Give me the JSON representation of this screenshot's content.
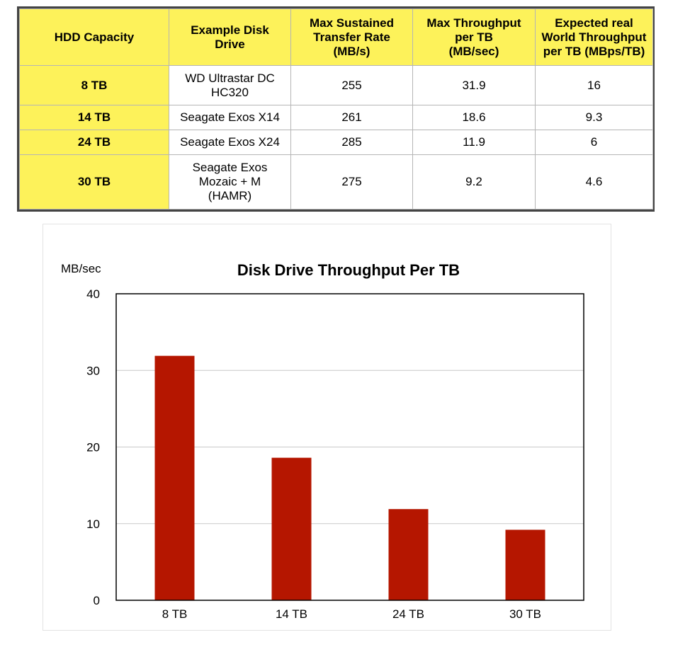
{
  "table": {
    "headers": [
      "HDD Capacity",
      "Example Disk\nDrive",
      "Max Sustained\nTransfer Rate\n(MB/s)",
      "Max Throughput\nper TB\n(MB/sec)",
      "Expected real\nWorld Throughput\nper TB (MBps/TB)"
    ],
    "rows": [
      [
        "8 TB",
        "WD Ultrastar DC\nHC320",
        "255",
        "31.9",
        "16"
      ],
      [
        "14 TB",
        "Seagate Exos X14",
        "261",
        "18.6",
        "9.3"
      ],
      [
        "24 TB",
        "Seagate Exos X24",
        "285",
        "11.9",
        "6"
      ],
      [
        "30 TB",
        "Seagate Exos\nMozaic + M\n(HAMR)",
        "275",
        "9.2",
        "4.6"
      ]
    ]
  },
  "colors": {
    "header_bg": "#fdf25a",
    "bar": "#b51600",
    "gridline": "#c8c8c8"
  },
  "chart_data": {
    "type": "bar",
    "title": "Disk Drive Throughput Per TB",
    "ylabel": "MB/sec",
    "xlabel": "",
    "categories": [
      "8 TB",
      "14 TB",
      "24 TB",
      "30 TB"
    ],
    "values": [
      31.9,
      18.6,
      11.9,
      9.2
    ],
    "ylim": [
      0,
      40
    ],
    "yticks": [
      0,
      10,
      20,
      30,
      40
    ],
    "grid": true,
    "legend": "none"
  }
}
